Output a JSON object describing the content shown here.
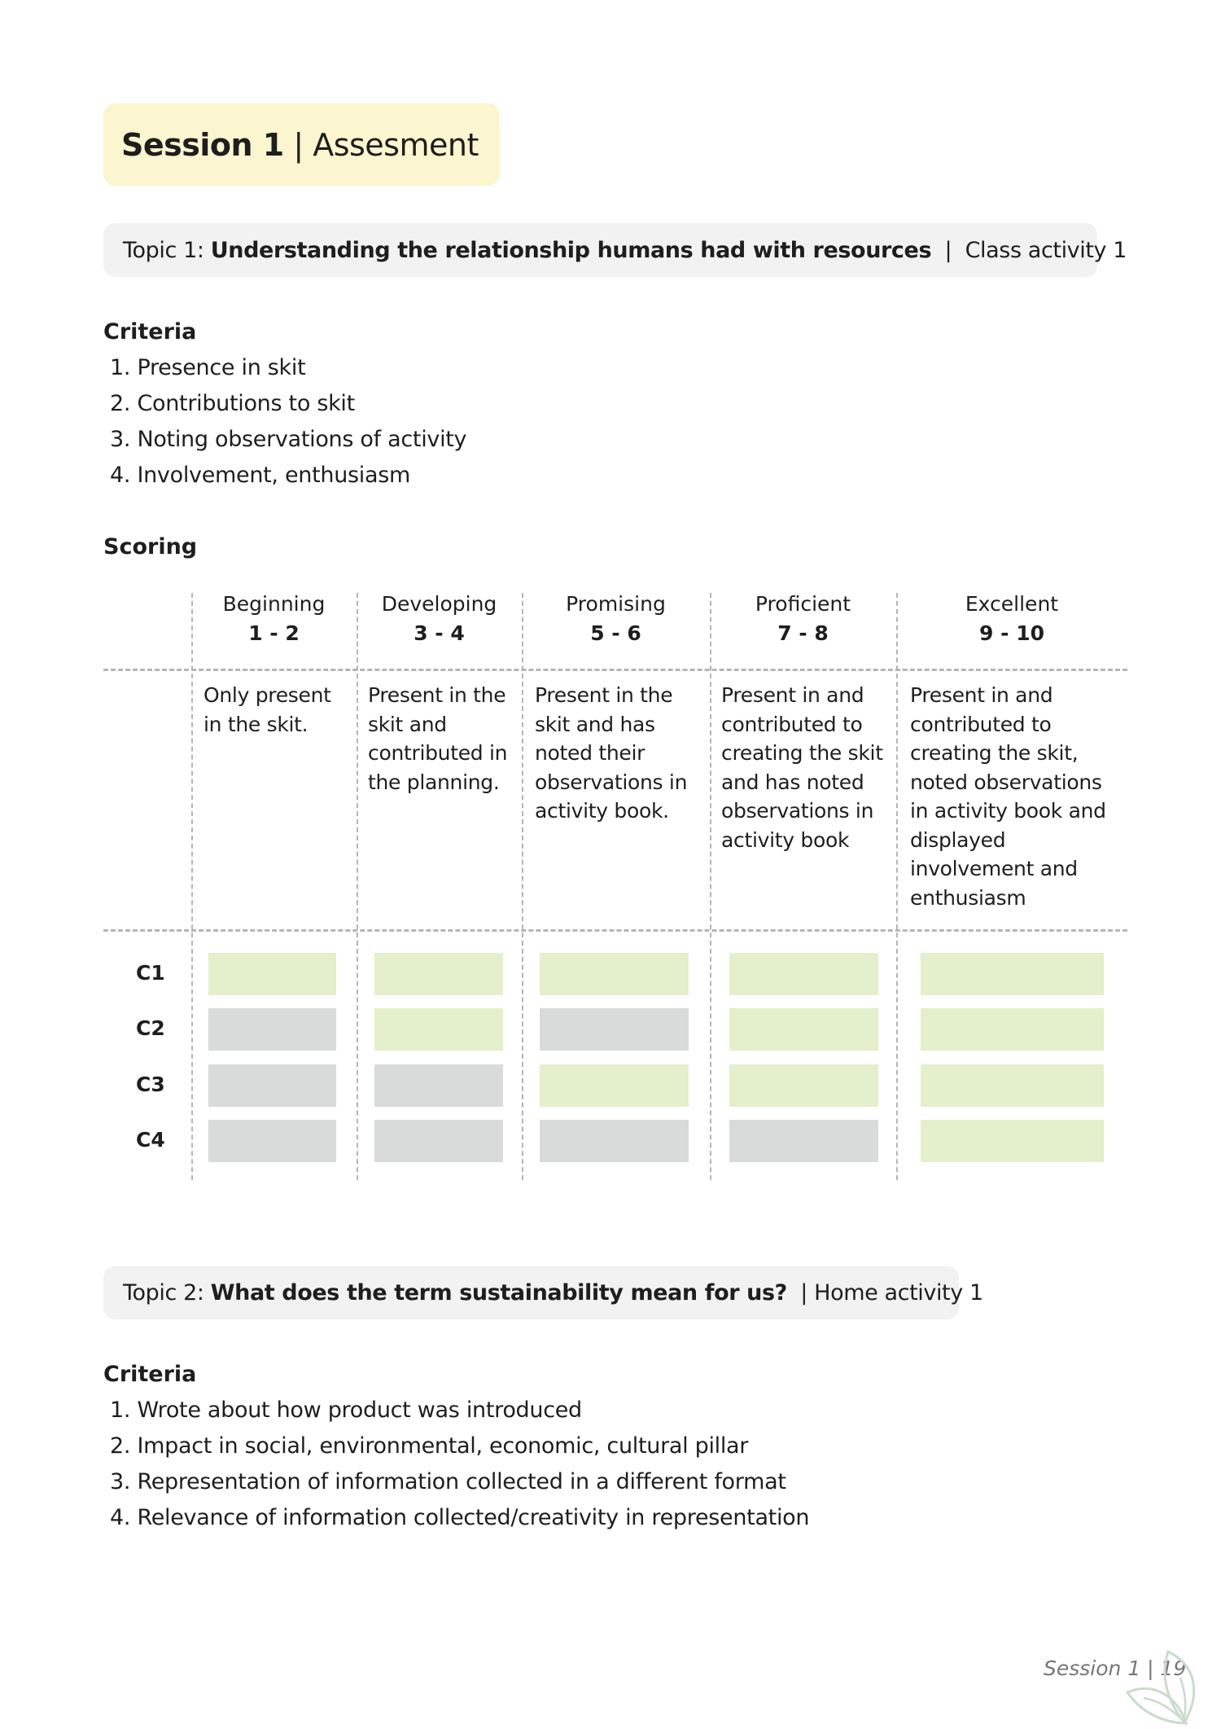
{
  "title": {
    "bold": "Session 1",
    "rest": "| Assesment"
  },
  "topic1": {
    "prefix": "Topic 1:",
    "title": "Understanding the relationship humans had with resources",
    "sep": "|",
    "activity": "Class activity 1"
  },
  "criteria1": {
    "heading": "Criteria",
    "items": [
      "1. Presence in skit",
      "2. Contributions to skit",
      "3. Noting observations of activity",
      "4. Involvement, enthusiasm"
    ]
  },
  "scoring": {
    "heading": "Scoring",
    "levels": [
      {
        "name": "Beginning",
        "range": "1 - 2",
        "description": [
          "Only present",
          "in the skit."
        ]
      },
      {
        "name": "Developing",
        "range": "3 - 4",
        "description": [
          "Present in the",
          "skit and",
          "contributed in",
          "the planning."
        ]
      },
      {
        "name": "Promising",
        "range": "5 - 6",
        "description": [
          "Present in the",
          "skit and has",
          "noted their",
          "observations in",
          "activity book."
        ]
      },
      {
        "name": "Proficient",
        "range": "7 - 8",
        "description": [
          "Present in and",
          "contributed to",
          "creating the skit",
          "and has noted",
          "observations in",
          "activity book"
        ]
      },
      {
        "name": "Excellent",
        "range": "9 - 10",
        "description": [
          "Present in and",
          "contributed to",
          "creating the skit,",
          "noted observations",
          "in activity book and",
          "displayed",
          "involvement and",
          "enthusiasm"
        ]
      }
    ],
    "rows": [
      {
        "label": "C1",
        "filled": [
          true,
          true,
          true,
          true,
          true
        ]
      },
      {
        "label": "C2",
        "filled": [
          false,
          true,
          false,
          true,
          true
        ]
      },
      {
        "label": "C3",
        "filled": [
          false,
          false,
          true,
          true,
          true
        ]
      },
      {
        "label": "C4",
        "filled": [
          false,
          false,
          false,
          false,
          true
        ]
      }
    ],
    "colors": {
      "filled": "#e4efcb",
      "empty": "#d9dbdb"
    }
  },
  "topic2": {
    "prefix": "Topic 2:",
    "title": "What does the term sustainability mean for us?",
    "sep": "|",
    "activity": "Home activity 1"
  },
  "criteria2": {
    "heading": "Criteria",
    "items": [
      "1. Wrote about how product was introduced",
      "2. Impact in social, environmental, economic, cultural pillar",
      "3. Representation of information collected in a different format",
      "4. Relevance of information collected/creativity in representation"
    ]
  },
  "footer": {
    "text": "Session 1 | 19",
    "icon": "leaf-icon"
  }
}
